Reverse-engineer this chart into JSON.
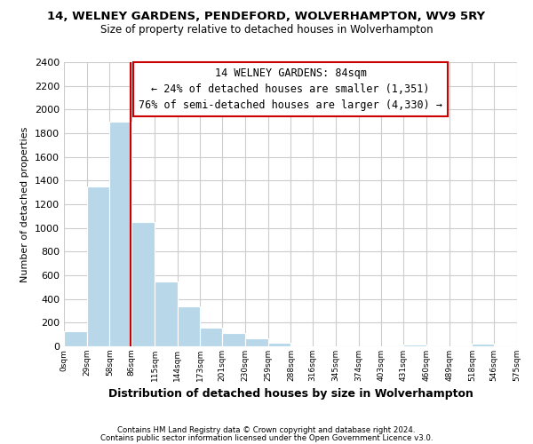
{
  "title": "14, WELNEY GARDENS, PENDEFORD, WOLVERHAMPTON, WV9 5RY",
  "subtitle": "Size of property relative to detached houses in Wolverhampton",
  "xlabel": "Distribution of detached houses by size in Wolverhampton",
  "ylabel": "Number of detached properties",
  "bin_edges": [
    0,
    29,
    58,
    86,
    115,
    144,
    173,
    201,
    230,
    259,
    288,
    316,
    345,
    374,
    403,
    431,
    460,
    489,
    518,
    546,
    575
  ],
  "bar_heights": [
    125,
    1350,
    1900,
    1050,
    550,
    340,
    160,
    110,
    65,
    30,
    0,
    0,
    0,
    0,
    0,
    15,
    0,
    0,
    20,
    0
  ],
  "bar_color": "#b8d8ea",
  "bar_edgecolor": "#ffffff",
  "property_line_x": 84,
  "property_line_color": "#cc0000",
  "annotation_title": "14 WELNEY GARDENS: 84sqm",
  "annotation_line1": "← 24% of detached houses are smaller (1,351)",
  "annotation_line2": "76% of semi-detached houses are larger (4,330) →",
  "annotation_box_color": "#ffffff",
  "annotation_box_edgecolor": "#cc0000",
  "ylim": [
    0,
    2400
  ],
  "yticks": [
    0,
    200,
    400,
    600,
    800,
    1000,
    1200,
    1400,
    1600,
    1800,
    2000,
    2200,
    2400
  ],
  "tick_labels": [
    "0sqm",
    "29sqm",
    "58sqm",
    "86sqm",
    "115sqm",
    "144sqm",
    "173sqm",
    "201sqm",
    "230sqm",
    "259sqm",
    "288sqm",
    "316sqm",
    "345sqm",
    "374sqm",
    "403sqm",
    "431sqm",
    "460sqm",
    "489sqm",
    "518sqm",
    "546sqm",
    "575sqm"
  ],
  "footnote1": "Contains HM Land Registry data © Crown copyright and database right 2024.",
  "footnote2": "Contains public sector information licensed under the Open Government Licence v3.0.",
  "background_color": "#ffffff",
  "grid_color": "#cccccc",
  "title_fontsize": 9.5,
  "subtitle_fontsize": 8.5,
  "ylabel_fontsize": 8,
  "xlabel_fontsize": 9,
  "footnote_fontsize": 6.2,
  "annotation_fontsize": 8.5,
  "xtick_fontsize": 6.5,
  "ytick_fontsize": 8
}
